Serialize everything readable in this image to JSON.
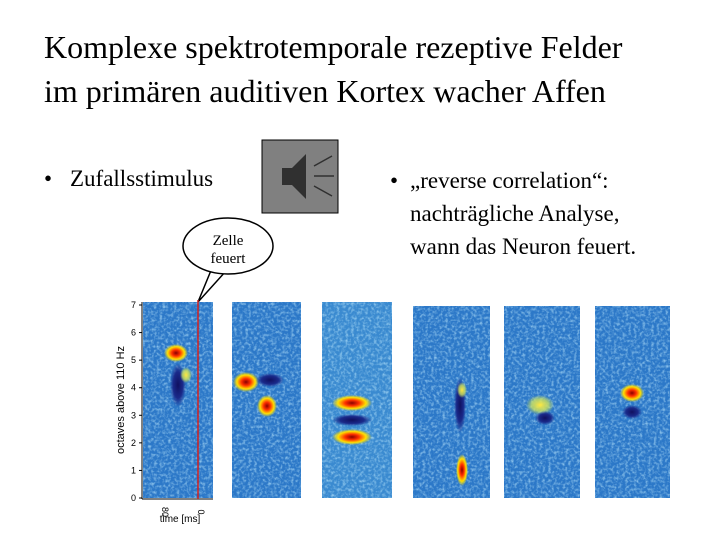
{
  "title": {
    "lines": [
      "Komplexe spektrotemporale rezeptive Felder",
      "im primären auditiven Kortex wacher Affen"
    ]
  },
  "left_bullet": {
    "marker": "•",
    "text": "Zufallsstimulus"
  },
  "right_bullet": {
    "marker": "•",
    "lines": [
      "„reverse correlation“:",
      "nachträgliche Analyse,",
      "wann das Neuron feuert."
    ]
  },
  "bubble": {
    "lines": [
      "Zelle",
      "feuert"
    ]
  },
  "plot": {
    "y_axis_label": "octaves above 110 Hz",
    "y_ticks": [
      7,
      6,
      5,
      4,
      3,
      2,
      1,
      0
    ],
    "x_ticks": [
      "80",
      "0"
    ],
    "x_axis_label": "time [ms]"
  }
}
